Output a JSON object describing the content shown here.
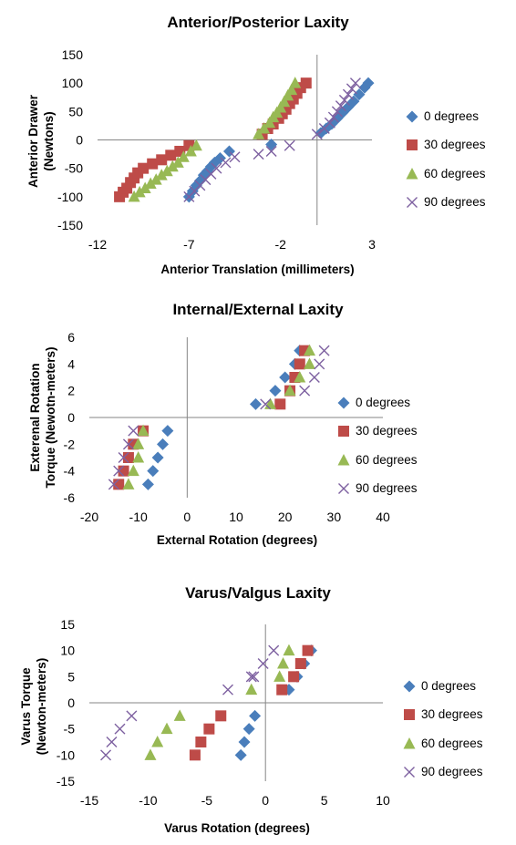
{
  "chart_data": [
    {
      "type": "scatter",
      "title": "Anterior/Posterior  Laxity",
      "xlabel": "Anterior Translation  (millimeters)",
      "ylabel": [
        "Anterior Drawer",
        "(Newtons)"
      ],
      "xlim": [
        -12,
        3
      ],
      "ylim": [
        -150,
        150
      ],
      "xticks": [
        -12,
        -7,
        -2,
        3
      ],
      "yticks": [
        150,
        100,
        50,
        0,
        -50,
        -100,
        -150
      ],
      "grid": false,
      "legend": "right",
      "series": [
        {
          "name": "0 degrees",
          "marker": "diamond",
          "color": "#4A7EBB",
          "points": [
            [
              -7,
              -100
            ],
            [
              -6.8,
              -90
            ],
            [
              -6.6,
              -80
            ],
            [
              -6.4,
              -72
            ],
            [
              -6.2,
              -62
            ],
            [
              -6.0,
              -55
            ],
            [
              -5.8,
              -47
            ],
            [
              -5.6,
              -40
            ],
            [
              -5.3,
              -32
            ],
            [
              -4.8,
              -20
            ],
            [
              -2.5,
              -8
            ],
            [
              0.2,
              12
            ],
            [
              0.5,
              20
            ],
            [
              0.8,
              28
            ],
            [
              1.1,
              38
            ],
            [
              1.4,
              48
            ],
            [
              1.7,
              58
            ],
            [
              2.0,
              68
            ],
            [
              2.3,
              80
            ],
            [
              2.6,
              92
            ],
            [
              2.8,
              100
            ]
          ]
        },
        {
          "name": "30 degrees",
          "marker": "square",
          "color": "#BE4B48",
          "points": [
            [
              -10.8,
              -100
            ],
            [
              -10.6,
              -92
            ],
            [
              -10.4,
              -85
            ],
            [
              -10.2,
              -75
            ],
            [
              -10.0,
              -67
            ],
            [
              -9.8,
              -58
            ],
            [
              -9.5,
              -50
            ],
            [
              -9.0,
              -42
            ],
            [
              -8.5,
              -35
            ],
            [
              -8.0,
              -27
            ],
            [
              -7.5,
              -20
            ],
            [
              -7.0,
              -10
            ],
            [
              -3.0,
              10
            ],
            [
              -2.7,
              20
            ],
            [
              -2.4,
              28
            ],
            [
              -2.1,
              38
            ],
            [
              -1.9,
              46
            ],
            [
              -1.7,
              54
            ],
            [
              -1.5,
              64
            ],
            [
              -1.3,
              72
            ],
            [
              -1.1,
              82
            ],
            [
              -0.9,
              92
            ],
            [
              -0.6,
              100
            ]
          ]
        },
        {
          "name": "60 degrees",
          "marker": "triangle",
          "color": "#98B954",
          "points": [
            [
              -10.0,
              -100
            ],
            [
              -9.7,
              -92
            ],
            [
              -9.4,
              -85
            ],
            [
              -9.1,
              -77
            ],
            [
              -8.8,
              -70
            ],
            [
              -8.5,
              -62
            ],
            [
              -8.2,
              -55
            ],
            [
              -7.9,
              -47
            ],
            [
              -7.6,
              -40
            ],
            [
              -7.3,
              -30
            ],
            [
              -6.9,
              -20
            ],
            [
              -6.6,
              -10
            ],
            [
              -3.2,
              10
            ],
            [
              -2.9,
              20
            ],
            [
              -2.6,
              30
            ],
            [
              -2.4,
              40
            ],
            [
              -2.2,
              48
            ],
            [
              -2.0,
              57
            ],
            [
              -1.8,
              67
            ],
            [
              -1.6,
              78
            ],
            [
              -1.4,
              88
            ],
            [
              -1.2,
              100
            ]
          ]
        },
        {
          "name": "90 degrees",
          "marker": "x",
          "color": "#7D60A0",
          "points": [
            [
              -7.0,
              -100
            ],
            [
              -6.7,
              -90
            ],
            [
              -6.4,
              -80
            ],
            [
              -6.1,
              -70
            ],
            [
              -5.8,
              -60
            ],
            [
              -5.5,
              -50
            ],
            [
              -5.0,
              -40
            ],
            [
              -4.5,
              -30
            ],
            [
              -3.2,
              -25
            ],
            [
              -2.5,
              -20
            ],
            [
              -1.5,
              -10
            ],
            [
              0,
              10
            ],
            [
              0.4,
              20
            ],
            [
              0.7,
              30
            ],
            [
              0.9,
              40
            ],
            [
              1.1,
              50
            ],
            [
              1.3,
              60
            ],
            [
              1.5,
              70
            ],
            [
              1.7,
              80
            ],
            [
              1.9,
              90
            ],
            [
              2.1,
              100
            ]
          ]
        }
      ]
    },
    {
      "type": "scatter",
      "title": "Internal/External Laxity",
      "xlabel": "External Rotation (degrees)",
      "ylabel": [
        "Exterenal Rotation",
        "Torque (Newotn-meters)"
      ],
      "xlim": [
        -20,
        40
      ],
      "ylim": [
        -6,
        6
      ],
      "xticks": [
        -20,
        -10,
        0,
        10,
        20,
        30,
        40
      ],
      "yticks": [
        6,
        4,
        2,
        0,
        -2,
        -4,
        -6
      ],
      "grid": false,
      "legend": "right",
      "series": [
        {
          "name": "0 degrees",
          "marker": "diamond",
          "color": "#4A7EBB",
          "points": [
            [
              -8,
              -5
            ],
            [
              -7,
              -4
            ],
            [
              -6,
              -3
            ],
            [
              -5,
              -2
            ],
            [
              -4,
              -1
            ],
            [
              14,
              1
            ],
            [
              18,
              2
            ],
            [
              20,
              3
            ],
            [
              22,
              4
            ],
            [
              23,
              5
            ]
          ]
        },
        {
          "name": "30 degrees",
          "marker": "square",
          "color": "#BE4B48",
          "points": [
            [
              -14,
              -5
            ],
            [
              -13,
              -4
            ],
            [
              -12,
              -3
            ],
            [
              -11,
              -2
            ],
            [
              -9,
              -1
            ],
            [
              19,
              1
            ],
            [
              21,
              2
            ],
            [
              22,
              3
            ],
            [
              23,
              4
            ],
            [
              24,
              5
            ]
          ]
        },
        {
          "name": "60 degrees",
          "marker": "triangle",
          "color": "#98B954",
          "points": [
            [
              -12,
              -5
            ],
            [
              -11,
              -4
            ],
            [
              -10,
              -3
            ],
            [
              -10,
              -2
            ],
            [
              -9,
              -1
            ],
            [
              17,
              1
            ],
            [
              21,
              2
            ],
            [
              23,
              3
            ],
            [
              25,
              4
            ],
            [
              25,
              5
            ]
          ]
        },
        {
          "name": "90 degrees",
          "marker": "x",
          "color": "#7D60A0",
          "points": [
            [
              -15,
              -5
            ],
            [
              -14,
              -4
            ],
            [
              -13,
              -3
            ],
            [
              -12,
              -2
            ],
            [
              -11,
              -1
            ],
            [
              16,
              1
            ],
            [
              24,
              2
            ],
            [
              26,
              3
            ],
            [
              27,
              4
            ],
            [
              28,
              5
            ]
          ]
        }
      ]
    },
    {
      "type": "scatter",
      "title": "Varus/Valgus Laxity",
      "xlabel": "Varus Rotation (degrees)",
      "ylabel": [
        "Varus Torque",
        "(Newton-meters)"
      ],
      "xlim": [
        -15,
        10
      ],
      "ylim": [
        -15,
        15
      ],
      "xticks": [
        -15,
        -10,
        -5,
        0,
        5,
        10
      ],
      "yticks": [
        15,
        10,
        5,
        0,
        -5,
        -10,
        -15
      ],
      "grid": false,
      "legend": "right",
      "series": [
        {
          "name": "0 degrees",
          "marker": "diamond",
          "color": "#4A7EBB",
          "points": [
            [
              -2.1,
              -10
            ],
            [
              -1.8,
              -7.5
            ],
            [
              -1.4,
              -5
            ],
            [
              -0.9,
              -2.5
            ],
            [
              2.0,
              2.5
            ],
            [
              2.7,
              5
            ],
            [
              3.3,
              7.5
            ],
            [
              3.9,
              10
            ]
          ]
        },
        {
          "name": "30 degrees",
          "marker": "square",
          "color": "#BE4B48",
          "points": [
            [
              -6.0,
              -10
            ],
            [
              -5.5,
              -7.5
            ],
            [
              -4.8,
              -5
            ],
            [
              -3.8,
              -2.5
            ],
            [
              1.4,
              2.5
            ],
            [
              2.4,
              5
            ],
            [
              3.0,
              7.5
            ],
            [
              3.6,
              10
            ]
          ]
        },
        {
          "name": "60 degrees",
          "marker": "triangle",
          "color": "#98B954",
          "points": [
            [
              -9.8,
              -10
            ],
            [
              -9.2,
              -7.5
            ],
            [
              -8.4,
              -5
            ],
            [
              -7.3,
              -2.5
            ],
            [
              -1.2,
              2.5
            ],
            [
              1.2,
              5
            ],
            [
              1.5,
              7.5
            ],
            [
              2.0,
              10
            ]
          ]
        },
        {
          "name": "90 degrees",
          "marker": "x",
          "color": "#7D60A0",
          "points": [
            [
              -13.6,
              -10
            ],
            [
              -13.1,
              -7.5
            ],
            [
              -12.4,
              -5
            ],
            [
              -11.4,
              -2.5
            ],
            [
              -3.2,
              2.5
            ],
            [
              -1.2,
              5
            ],
            [
              -1.0,
              5
            ],
            [
              -0.2,
              7.5
            ],
            [
              0.7,
              10
            ]
          ]
        }
      ]
    }
  ]
}
